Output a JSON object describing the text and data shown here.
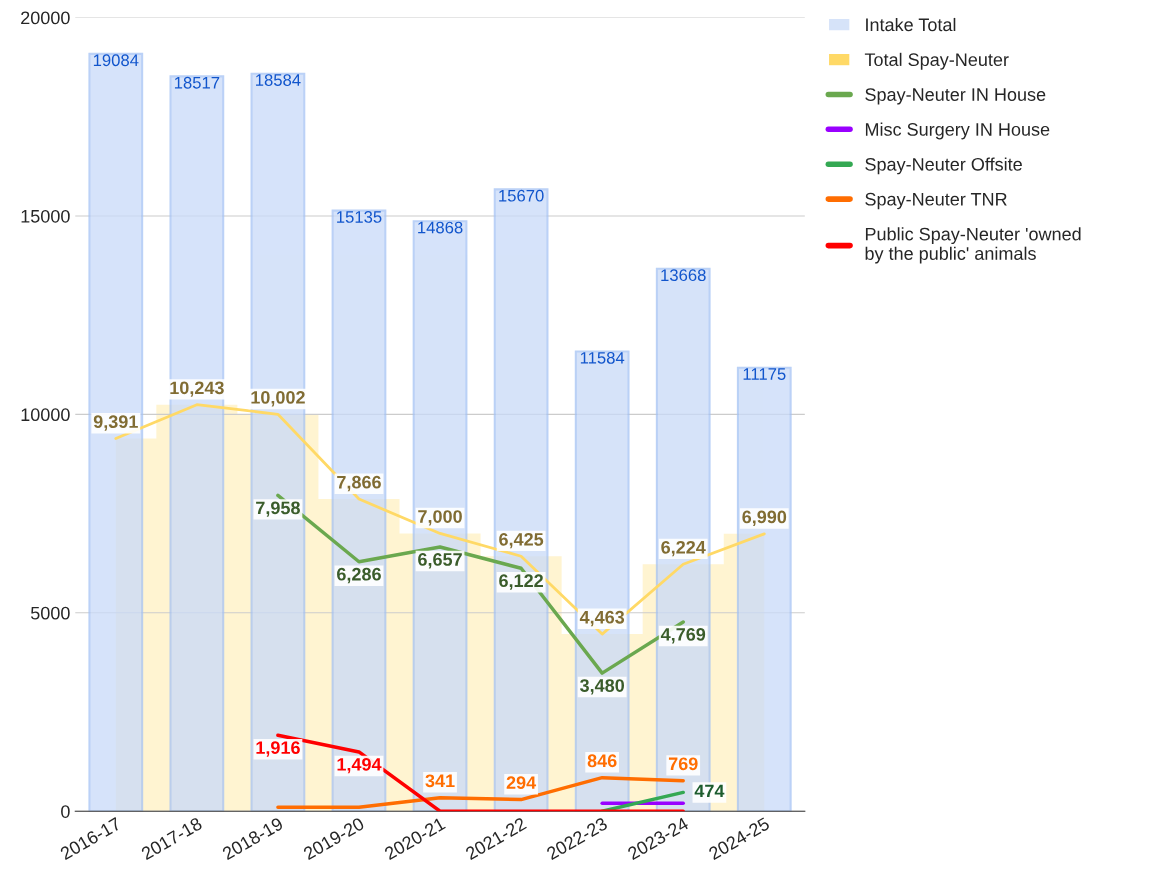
{
  "chart_data": {
    "type": "line",
    "categories": [
      "2016-17",
      "2017-18",
      "2018-19",
      "2019-20",
      "2020-21",
      "2021-22",
      "2022-23",
      "2023-24",
      "2024-25"
    ],
    "series": [
      {
        "name": "Intake Total",
        "type": "bar",
        "color": "#c9daf8",
        "values": [
          19084,
          18517,
          18584,
          15135,
          14868,
          15670,
          11584,
          13668,
          11175
        ],
        "value_labels": [
          "19084",
          "18517",
          "18584",
          "15135",
          "14868",
          "15670",
          "11584",
          "13668",
          "11175"
        ]
      },
      {
        "name": "Total Spay-Neuter",
        "type": "step",
        "color": "#ffd966",
        "values": [
          9391,
          10243,
          10002,
          7866,
          7000,
          6425,
          4463,
          6224,
          6990
        ],
        "value_labels": [
          "9,391",
          "10,243",
          "10,002",
          "7,866",
          "7,000",
          "6,425",
          "4,463",
          "6,224",
          "6,990"
        ]
      },
      {
        "name": "Spay-Neuter IN House",
        "color": "#6aa84f",
        "values": [
          null,
          null,
          7958,
          6286,
          6657,
          6122,
          3480,
          4769,
          null
        ],
        "value_labels": [
          null,
          null,
          "7,958",
          "6,286",
          "6,657",
          "6,122",
          "3,480",
          "4,769",
          null
        ]
      },
      {
        "name": "Misc Surgery IN House",
        "color": "#9900ff",
        "values": [
          null,
          null,
          null,
          null,
          null,
          null,
          200,
          200,
          null
        ]
      },
      {
        "name": "Spay-Neuter Offsite",
        "color": "#34a853",
        "values": [
          null,
          null,
          null,
          null,
          null,
          null,
          0,
          474,
          null
        ],
        "value_labels": [
          null,
          null,
          null,
          null,
          null,
          null,
          null,
          "474",
          null
        ]
      },
      {
        "name": "Spay-Neuter TNR",
        "color": "#ff6d01",
        "values": [
          null,
          null,
          100,
          100,
          341,
          294,
          846,
          769,
          null
        ],
        "value_labels": [
          null,
          null,
          null,
          null,
          "341",
          "294",
          "846",
          "769",
          null
        ]
      },
      {
        "name": "Public Spay-Neuter 'owned\nby the public' animals",
        "color": "#ff0000",
        "values": [
          null,
          null,
          1916,
          1494,
          0,
          0,
          0,
          0,
          null
        ],
        "value_labels": [
          null,
          null,
          "1,916",
          "1,494",
          null,
          null,
          null,
          null,
          null
        ]
      }
    ],
    "ylim": [
      0,
      20000
    ],
    "yticks": [
      0,
      5000,
      10000,
      15000,
      20000
    ],
    "grid": "y",
    "legend": "top right"
  }
}
